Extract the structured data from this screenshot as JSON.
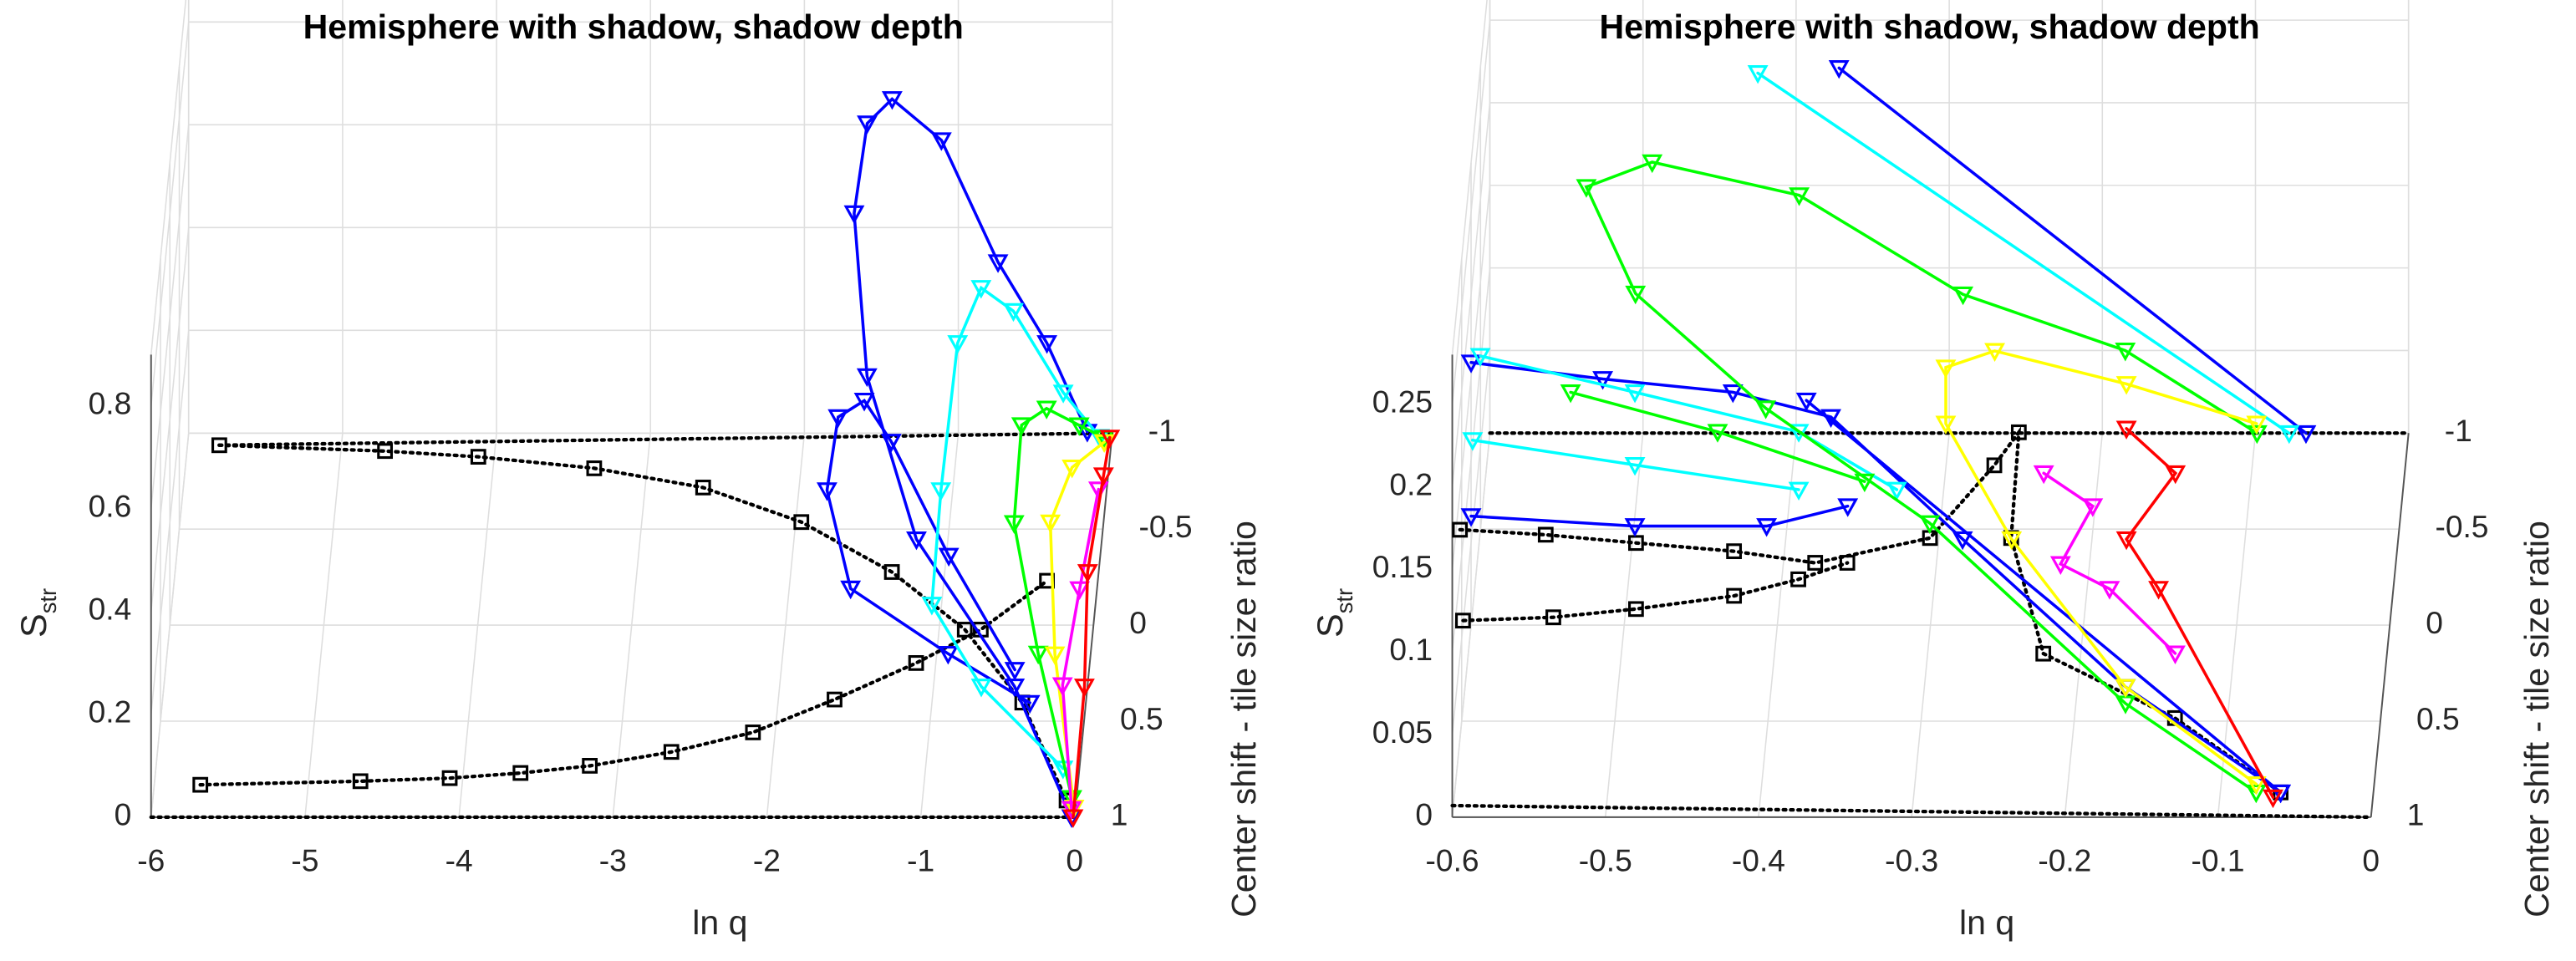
{
  "chart_data": [
    {
      "type": "line3d",
      "title": "Hemisphere with shadow, shadow depth",
      "xlabel": "ln q",
      "ylabel": "S",
      "ylabel_sub": "str",
      "zlabel": "Center shift - tile size ratio",
      "xlim": [
        -6,
        0
      ],
      "xticks": [
        -6,
        -5,
        -4,
        -3,
        -2,
        -1,
        0
      ],
      "ylim": [
        0,
        0.9
      ],
      "yticks": [
        0,
        0.2,
        0.4,
        0.6,
        0.8
      ],
      "zlim": [
        -1,
        1
      ],
      "zticks": [
        -1,
        -0.5,
        0,
        0.5,
        1
      ],
      "grid": true,
      "series": [
        {
          "color": "#000000",
          "marker": "none",
          "linestyle": "dotted",
          "x": [
            -6,
            0,
            null,
            -5.79,
            0
          ],
          "y": [
            0,
            0,
            null,
            0.01,
            0
          ],
          "z": [
            1,
            1,
            null,
            -0.91,
            -1
          ]
        },
        {
          "color": "#000000",
          "marker": "square",
          "linestyle": "dotted",
          "x": [
            -5.79,
            -4.71,
            -4.1,
            -3.34,
            -2.62,
            -1.96,
            -1.34,
            -0.83,
            -0.41,
            -0.06
          ],
          "y": [
            0.01,
            0.01,
            0.01,
            0.01,
            0.01,
            0.01,
            0.01,
            0.01,
            0.01,
            0.01
          ],
          "z": [
            -0.91,
            -0.88,
            -0.85,
            -0.79,
            -0.69,
            -0.51,
            -0.25,
            0.05,
            0.43,
            0.94
          ]
        },
        {
          "color": "#000000",
          "marker": "square",
          "linestyle": "dotted",
          "x": [
            -5.68,
            -4.64,
            -4.06,
            -3.6,
            -3.15,
            -2.62,
            -2.09,
            -1.56,
            -1.03,
            -0.61,
            -0.18
          ],
          "y": [
            0.063,
            0.07,
            0.076,
            0.086,
            0.1,
            0.127,
            0.165,
            0.229,
            0.3,
            0.365,
            0.46
          ],
          "z": [
            1,
            1,
            1,
            1,
            1,
            1,
            1,
            1,
            1,
            1,
            1
          ]
        },
        {
          "color": "#0000ff",
          "marker": "triangle",
          "linestyle": "solid",
          "x": [
            -0.02,
            -0.44,
            -1.15,
            -1.52,
            -1.64,
            -1.58,
            -1.43,
            -1.11,
            -0.73,
            -0.4,
            -0.15,
            null,
            -0.34,
            -0.92,
            -1.59,
            -1.78,
            -1.72,
            -1.55,
            -1.35,
            -0.94,
            -0.45
          ],
          "y": [
            0,
            0.105,
            0.167,
            0.335,
            0.54,
            0.64,
            0.65,
            0.57,
            0.37,
            0.25,
            0.04,
            null,
            0.073,
            0.019,
            0.034,
            0.113,
            0.218,
            0.25,
            0.245,
            0.135,
            0.1
          ],
          "z": [
            1,
            0.6,
            0,
            -0.4,
            -0.7,
            -0.9,
            -1,
            -1,
            -0.9,
            -0.8,
            -0.9,
            null,
            0.6,
            0.2,
            -0.1,
            -0.4,
            -0.5,
            -0.5,
            -0.3,
            0,
            0.5
          ]
        },
        {
          "color": "#00ffff",
          "marker": "triangle",
          "linestyle": "solid",
          "x": [
            -0.1,
            -0.68,
            -1.05,
            -1.04,
            -0.98,
            -0.84,
            -0.63,
            -0.3,
            -0.07
          ],
          "y": [
            0.02,
            0.03,
            0.04,
            0.113,
            0.25,
            0.32,
            0.275,
            0.135,
            0.03
          ],
          "z": [
            0.8,
            0.4,
            0,
            -0.4,
            -0.8,
            -0.9,
            -0.9,
            -0.85,
            -0.9
          ]
        },
        {
          "color": "#00ff00",
          "marker": "triangle",
          "linestyle": "solid",
          "x": [
            -0.03,
            -0.31,
            -0.54,
            -0.54,
            -0.39,
            -0.19,
            -0.04
          ],
          "y": [
            0,
            0.094,
            0.124,
            0.165,
            0.16,
            0.09,
            0.028
          ],
          "z": [
            0.9,
            0.4,
            -0.2,
            -0.6,
            -0.7,
            -0.8,
            -0.9
          ]
        },
        {
          "color": "#ffff00",
          "marker": "triangle",
          "linestyle": "solid",
          "x": [
            -0.01,
            -0.19,
            -0.28,
            -0.2,
            -0.04
          ],
          "y": [
            0,
            0.13,
            0.2,
            0.12,
            0.02
          ],
          "z": [
            0.95,
            0.5,
            0,
            -0.5,
            -0.9
          ]
        },
        {
          "color": "#ff00ff",
          "marker": "triangle",
          "linestyle": "solid",
          "x": [
            -0.02,
            -0.14,
            -0.09,
            -0.04
          ],
          "y": [
            0.016,
            0.07,
            0.07,
            0.04
          ],
          "z": [
            1,
            0.5,
            0,
            -0.6
          ]
        },
        {
          "color": "#ff0000",
          "marker": "triangle",
          "linestyle": "solid",
          "x": [
            -0.01,
            -0.01,
            -0.05,
            -0.02,
            -0.01
          ],
          "y": [
            0,
            0.03,
            0.066,
            0.03,
            0.01
          ],
          "z": [
            1,
            0.4,
            -0.1,
            -0.7,
            -0.95
          ]
        }
      ]
    },
    {
      "type": "line3d",
      "title": "Hemisphere with shadow, shadow depth",
      "xlabel": "ln q",
      "ylabel": "S",
      "ylabel_sub": "str",
      "zlabel": "Center shift - tile size ratio",
      "xlim": [
        -0.6,
        0
      ],
      "xticks": [
        -0.6,
        -0.5,
        -0.4,
        -0.3,
        -0.2,
        -0.1,
        0
      ],
      "ylim": [
        0,
        0.28
      ],
      "yticks": [
        0,
        0.05,
        0.1,
        0.15,
        0.2,
        0.25
      ],
      "zlim": [
        -1,
        1
      ],
      "zticks": [
        -1,
        -0.5,
        0,
        0.5,
        1
      ],
      "grid": true,
      "series": [
        {
          "color": "#000000",
          "marker": "none",
          "linestyle": "dotted",
          "x": [
            -0.6,
            0,
            null,
            -0.6,
            0
          ],
          "y": [
            0.007,
            0,
            null,
            0,
            0
          ],
          "z": [
            1,
            1,
            null,
            -1,
            -1
          ]
        },
        {
          "color": "#000000",
          "marker": "square",
          "linestyle": "dotted",
          "x": [
            -0.595,
            -0.539,
            -0.48,
            -0.416,
            -0.363,
            -0.288,
            -0.246,
            -0.23,
            -0.235,
            -0.214,
            -0.128,
            -0.059
          ],
          "y": [
            0.174,
            0.171,
            0.166,
            0.161,
            0.154,
            0.169,
            0.213,
            0.233,
            0.169,
            0.099,
            0.06,
            0.015
          ],
          "z": [
            1,
            1,
            1,
            1,
            1,
            1,
            1,
            1,
            1,
            1,
            1,
            1
          ]
        },
        {
          "color": "#000000",
          "marker": "square",
          "linestyle": "dotted",
          "x": [
            -0.593,
            -0.534,
            -0.48,
            -0.416,
            -0.374,
            -0.342
          ],
          "y": [
            0.119,
            0.121,
            0.126,
            0.134,
            0.144,
            0.154
          ],
          "z": [
            1,
            1,
            1,
            1,
            1,
            1
          ]
        },
        {
          "color": "#0000ff",
          "marker": "triangle",
          "linestyle": "solid",
          "x": [
            -0.6,
            -0.514,
            -0.429,
            -0.365,
            -0.279,
            -0.164,
            -0.059,
            null,
            -0.6,
            -0.493,
            -0.407,
            -0.354,
            null,
            -0.372,
            -0.067,
            null,
            -0.381,
            -0.059
          ],
          "y": [
            0.159,
            0.149,
            0.141,
            0.126,
            0.052,
            0.044,
            0.015,
            null,
            0.066,
            0.06,
            0.06,
            0.072,
            null,
            0.221,
            0,
            null,
            0.136,
            0.015
          ],
          "z": [
            0,
            0,
            0,
            0,
            0,
            0.7,
            1,
            null,
            0,
            0,
            0,
            0,
            null,
            -1,
            -1,
            null,
            0,
            1
          ]
        },
        {
          "color": "#00ffff",
          "marker": "triangle",
          "linestyle": "solid",
          "x": [
            -0.594,
            -0.493,
            -0.386,
            -0.322,
            null,
            -0.599,
            -0.493,
            -0.386,
            null,
            -0.425,
            -0.078
          ],
          "y": [
            0.163,
            0.141,
            0.117,
            0.082,
            null,
            0.112,
            0.097,
            0.082,
            null,
            0.218,
            0
          ],
          "z": [
            0,
            0,
            0,
            0,
            null,
            0,
            0,
            0,
            null,
            -1,
            -1
          ]
        },
        {
          "color": "#00ff00",
          "marker": "triangle",
          "linestyle": "solid",
          "x": [
            -0.099,
            -0.185,
            -0.291,
            -0.398,
            -0.494,
            -0.537,
            -0.5,
            -0.41,
            -0.298,
            -0.164,
            -0.075,
            null,
            -0.535,
            -0.439,
            -0.343
          ],
          "y": [
            0,
            0.05,
            0.084,
            0.144,
            0.164,
            0.149,
            0.131,
            0.108,
            0.085,
            0.034,
            0.015,
            null,
            0.141,
            0.117,
            0.087
          ],
          "z": [
            -1,
            -1,
            -1,
            -1,
            -1,
            -1,
            -0.6,
            -0.2,
            0.2,
            0.7,
            1,
            null,
            0,
            0,
            0
          ]
        },
        {
          "color": "#ffff00",
          "marker": "triangle",
          "linestyle": "solid",
          "x": [
            -0.087,
            -0.172,
            -0.258,
            -0.29,
            -0.29,
            -0.247,
            -0.164,
            -0.075
          ],
          "y": [
            0.122,
            0.146,
            0.166,
            0.156,
            0.122,
            0.052,
            0.044,
            0.02
          ],
          "z": [
            0,
            0,
            0,
            0,
            0,
            0,
            0.7,
            1
          ]
        },
        {
          "color": "#ff00ff",
          "marker": "triangle",
          "linestyle": "solid",
          "x": [
            -0.226,
            -0.194,
            -0.215,
            -0.183,
            -0.134
          ],
          "y": [
            0.092,
            0.072,
            0.037,
            0.022,
            0.041
          ],
          "z": [
            0,
            0,
            0,
            0,
            0.5
          ]
        },
        {
          "color": "#ff0000",
          "marker": "triangle",
          "linestyle": "solid",
          "x": [
            -0.172,
            -0.14,
            -0.172,
            -0.151,
            -0.064
          ],
          "y": [
            0.119,
            0.092,
            0.052,
            0.022,
            0.012
          ],
          "z": [
            0,
            0,
            0,
            0,
            1
          ]
        }
      ]
    }
  ]
}
